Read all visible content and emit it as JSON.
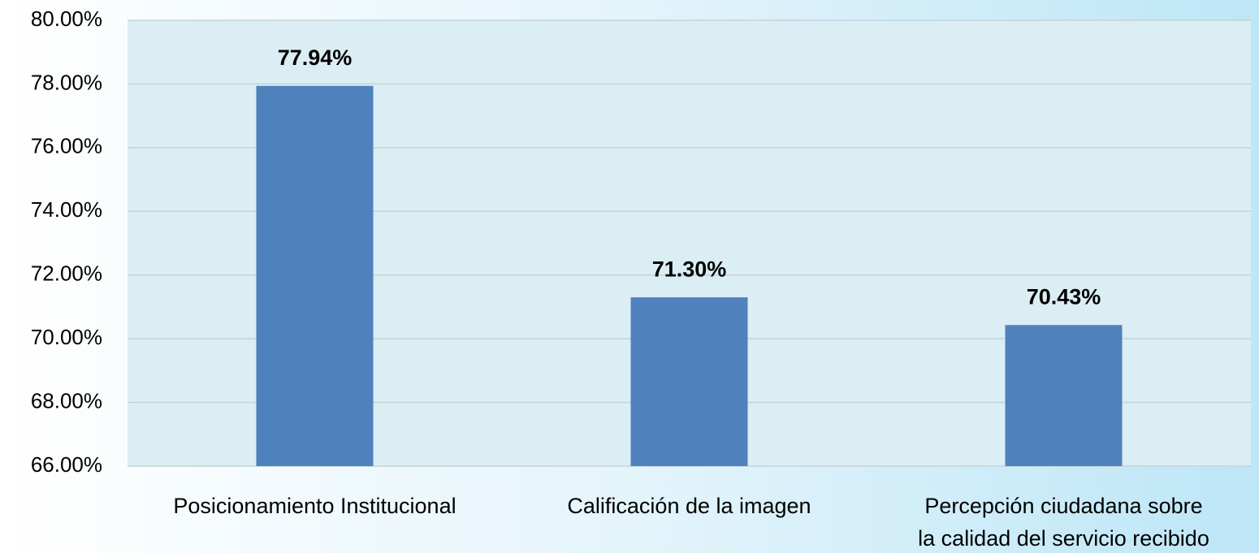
{
  "chart_data": {
    "type": "bar",
    "categories": [
      "Posicionamiento Institucional",
      "Calificación de la imagen",
      "Percepción ciudadana sobre\nla calidad del servicio recibido"
    ],
    "values": [
      77.94,
      71.3,
      70.43
    ],
    "value_labels": [
      "77.94%",
      "71.30%",
      "70.43%"
    ],
    "color": "#4f81bd",
    "ylim": [
      66,
      80
    ],
    "yticks": [
      {
        "value": 66,
        "label": "66.00%"
      },
      {
        "value": 68,
        "label": "68.00%"
      },
      {
        "value": 70,
        "label": "70.00%"
      },
      {
        "value": 72,
        "label": "72.00%"
      },
      {
        "value": 74,
        "label": "74.00%"
      },
      {
        "value": 76,
        "label": "76.00%"
      },
      {
        "value": 78,
        "label": "78.00%"
      },
      {
        "value": 80,
        "label": "80.00%"
      }
    ],
    "grid": true
  }
}
